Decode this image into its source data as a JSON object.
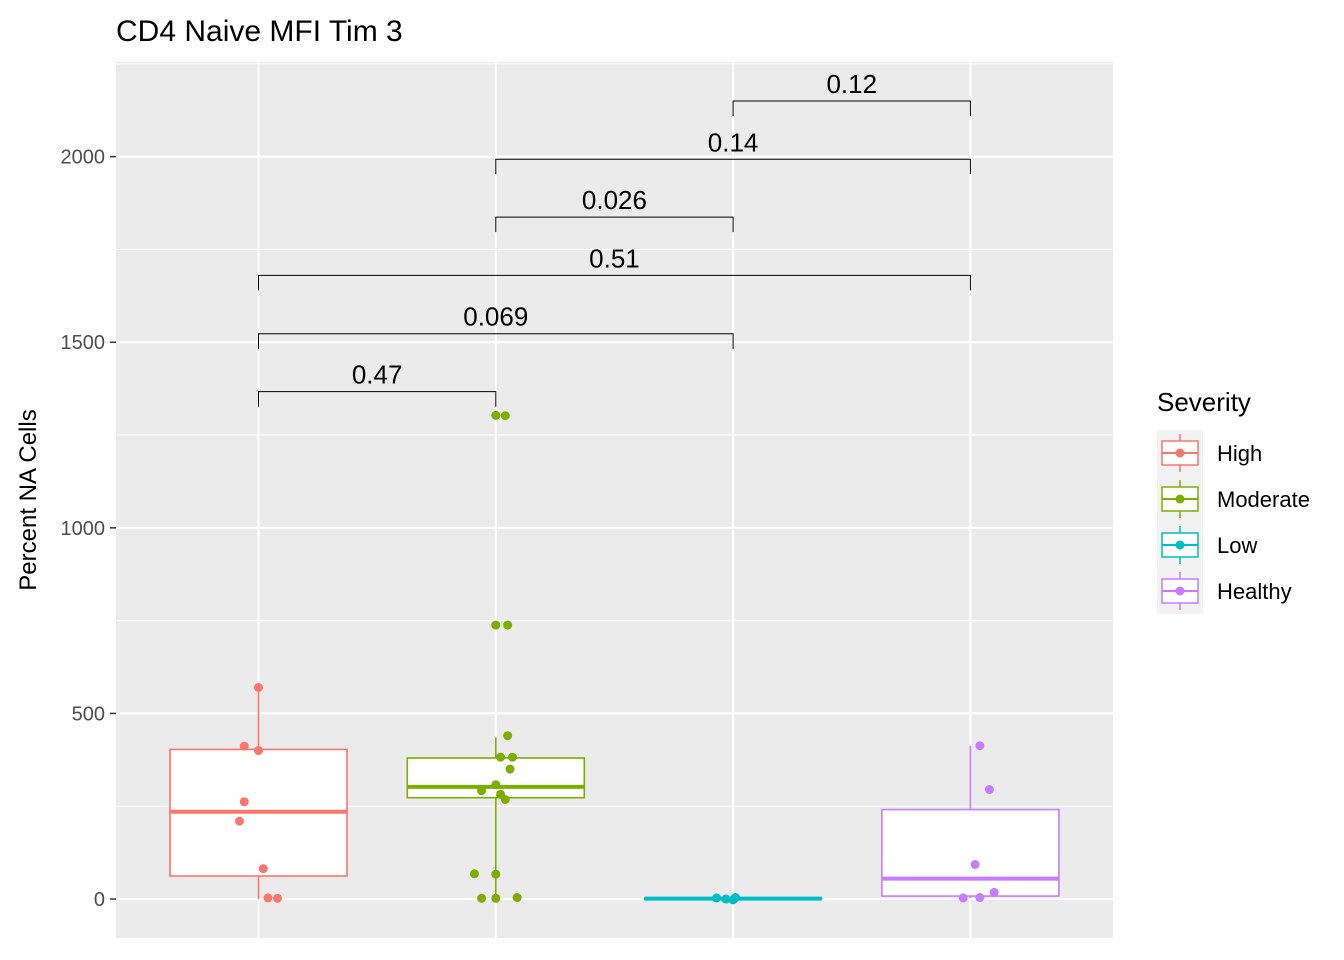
{
  "chart_data": {
    "type": "box",
    "title": "CD4 Naive MFI Tim 3",
    "xlabel": "",
    "ylabel": "Percent NA Cells",
    "ylim": [
      -105,
      2255
    ],
    "yticks": [
      0,
      500,
      1000,
      1500,
      2000
    ],
    "ytick_labels": [
      "0",
      "500",
      "1000",
      "1500",
      "2000"
    ],
    "grid": true,
    "categories": [
      "High",
      "Moderate",
      "Low",
      "Healthy"
    ],
    "legend": {
      "title": "Severity",
      "position": "right"
    },
    "series": [
      {
        "name": "High",
        "color": "#F8766D",
        "box": {
          "whisker_low": 0,
          "q1": 62,
          "median": 235,
          "q3": 403,
          "whisker_high": 570
        },
        "points": [
          {
            "offset": 0.0,
            "y": 570
          },
          {
            "offset": -0.06,
            "y": 412
          },
          {
            "offset": 0.0,
            "y": 400
          },
          {
            "offset": -0.06,
            "y": 262
          },
          {
            "offset": -0.08,
            "y": 210
          },
          {
            "offset": 0.02,
            "y": 82
          },
          {
            "offset": 0.04,
            "y": 3
          },
          {
            "offset": 0.08,
            "y": 2
          }
        ]
      },
      {
        "name": "Moderate",
        "color": "#7CAE00",
        "box": {
          "whisker_low": 0,
          "q1": 273,
          "median": 302,
          "q3": 380,
          "whisker_high": 435
        },
        "points": [
          {
            "offset": 0.0,
            "y": 1303
          },
          {
            "offset": 0.04,
            "y": 1302
          },
          {
            "offset": 0.0,
            "y": 738
          },
          {
            "offset": 0.05,
            "y": 738
          },
          {
            "offset": 0.05,
            "y": 440
          },
          {
            "offset": 0.07,
            "y": 382
          },
          {
            "offset": 0.02,
            "y": 382
          },
          {
            "offset": 0.06,
            "y": 350
          },
          {
            "offset": 0.0,
            "y": 308
          },
          {
            "offset": -0.06,
            "y": 292
          },
          {
            "offset": 0.02,
            "y": 282
          },
          {
            "offset": 0.04,
            "y": 268
          },
          {
            "offset": -0.09,
            "y": 68
          },
          {
            "offset": 0.0,
            "y": 67
          },
          {
            "offset": -0.06,
            "y": 2
          },
          {
            "offset": 0.0,
            "y": 2
          },
          {
            "offset": 0.09,
            "y": 4
          }
        ]
      },
      {
        "name": "Low",
        "color": "#00BFC4",
        "box": {
          "whisker_low": 0,
          "q1": 0,
          "median": 1,
          "q3": 2,
          "whisker_high": 4
        },
        "points": [
          {
            "offset": -0.07,
            "y": 3
          },
          {
            "offset": -0.03,
            "y": 0
          },
          {
            "offset": 0.0,
            "y": -2
          },
          {
            "offset": 0.01,
            "y": 4
          }
        ]
      },
      {
        "name": "Healthy",
        "color": "#C77CFF",
        "box": {
          "whisker_low": 3,
          "q1": 8,
          "median": 55,
          "q3": 241,
          "whisker_high": 413
        },
        "points": [
          {
            "offset": 0.04,
            "y": 413
          },
          {
            "offset": 0.08,
            "y": 295
          },
          {
            "offset": 0.02,
            "y": 93
          },
          {
            "offset": 0.1,
            "y": 18
          },
          {
            "offset": -0.03,
            "y": 3
          },
          {
            "offset": 0.04,
            "y": 4
          }
        ]
      }
    ],
    "comparisons": [
      {
        "from": "High",
        "to": "Moderate",
        "label": "0.47",
        "y": 1367
      },
      {
        "from": "High",
        "to": "Low",
        "label": "0.069",
        "y": 1523
      },
      {
        "from": "High",
        "to": "Healthy",
        "label": "0.51",
        "y": 1680
      },
      {
        "from": "Moderate",
        "to": "Low",
        "label": "0.026",
        "y": 1837
      },
      {
        "from": "Moderate",
        "to": "Healthy",
        "label": "0.14",
        "y": 1993
      },
      {
        "from": "Low",
        "to": "Healthy",
        "label": "0.12",
        "y": 2150
      }
    ]
  }
}
